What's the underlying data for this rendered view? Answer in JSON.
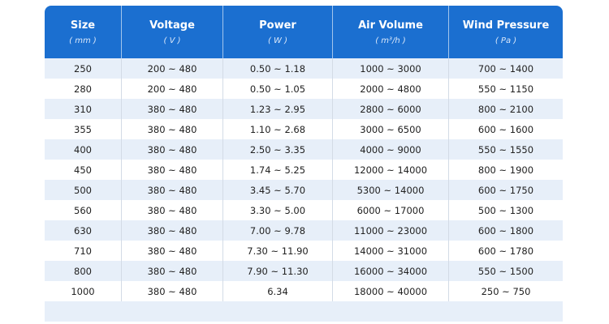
{
  "table": {
    "columns": [
      {
        "title": "Size",
        "unit": "( mm )"
      },
      {
        "title": "Voltage",
        "unit": "( V )"
      },
      {
        "title": "Power",
        "unit": "( W )"
      },
      {
        "title": "Air Volume",
        "unit": "( m³/h )"
      },
      {
        "title": "Wind Pressure",
        "unit": "( Pa )"
      }
    ],
    "rows": [
      [
        "250",
        "200 ~ 480",
        "0.50 ~ 1.18",
        "1000 ~ 3000",
        "700 ~ 1400"
      ],
      [
        "280",
        "200 ~ 480",
        "0.50 ~ 1.05",
        "2000 ~ 4800",
        "550 ~ 1150"
      ],
      [
        "310",
        "380 ~ 480",
        "1.23 ~ 2.95",
        "2800 ~ 6000",
        "800 ~ 2100"
      ],
      [
        "355",
        "380 ~ 480",
        "1.10 ~ 2.68",
        "3000 ~ 6500",
        "600 ~ 1600"
      ],
      [
        "400",
        "380 ~ 480",
        "2.50 ~ 3.35",
        "4000 ~ 9000",
        "550 ~ 1550"
      ],
      [
        "450",
        "380 ~ 480",
        "1.74 ~ 5.25",
        "12000 ~ 14000",
        "800 ~ 1900"
      ],
      [
        "500",
        "380 ~ 480",
        "3.45 ~ 5.70",
        "5300 ~ 14000",
        "600 ~ 1750"
      ],
      [
        "560",
        "380 ~ 480",
        "3.30 ~ 5.00",
        "6000 ~ 17000",
        "500 ~ 1300"
      ],
      [
        "630",
        "380 ~ 480",
        "7.00 ~ 9.78",
        "11000 ~ 23000",
        "600 ~ 1800"
      ],
      [
        "710",
        "380 ~ 480",
        "7.30 ~ 11.90",
        "14000 ~ 31000",
        "600 ~ 1780"
      ],
      [
        "800",
        "380 ~ 480",
        "7.90 ~ 11.30",
        "16000 ~ 34000",
        "550 ~ 1500"
      ],
      [
        "1000",
        "380 ~ 480",
        "6.34",
        "18000 ~ 40000",
        "250 ~ 750"
      ]
    ]
  }
}
